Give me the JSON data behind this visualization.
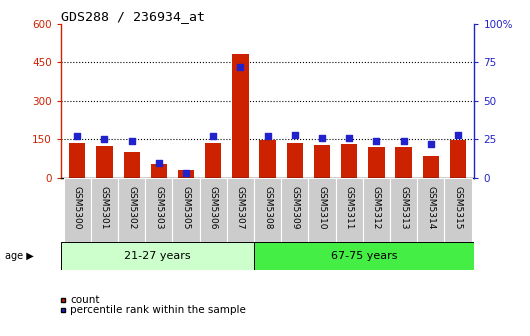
{
  "title": "GDS288 / 236934_at",
  "samples": [
    "GSM5300",
    "GSM5301",
    "GSM5302",
    "GSM5303",
    "GSM5305",
    "GSM5306",
    "GSM5307",
    "GSM5308",
    "GSM5309",
    "GSM5310",
    "GSM5311",
    "GSM5312",
    "GSM5313",
    "GSM5314",
    "GSM5315"
  ],
  "counts": [
    135,
    125,
    100,
    55,
    30,
    135,
    480,
    148,
    137,
    130,
    132,
    120,
    122,
    85,
    148
  ],
  "percentile_ranks": [
    27,
    25,
    24,
    10,
    3,
    27,
    72,
    27,
    28,
    26,
    26,
    24,
    24,
    22,
    28
  ],
  "group1_label": "21-27 years",
  "group2_label": "67-75 years",
  "group1_count": 7,
  "group2_count": 8,
  "ylim_left": [
    0,
    600
  ],
  "ylim_right": [
    0,
    100
  ],
  "yticks_left": [
    0,
    150,
    300,
    450,
    600
  ],
  "yticks_right": [
    0,
    25,
    50,
    75,
    100
  ],
  "bar_color": "#cc2200",
  "dot_color": "#2222cc",
  "group1_bg": "#ccffcc",
  "group2_bg": "#44ee44",
  "xtick_bg": "#cccccc",
  "plot_bg": "#ffffff",
  "age_label": "age",
  "legend_count": "count",
  "legend_percentile": "percentile rank within the sample",
  "title_color": "#000000",
  "left_axis_color": "#cc2200",
  "right_axis_color": "#2222cc"
}
